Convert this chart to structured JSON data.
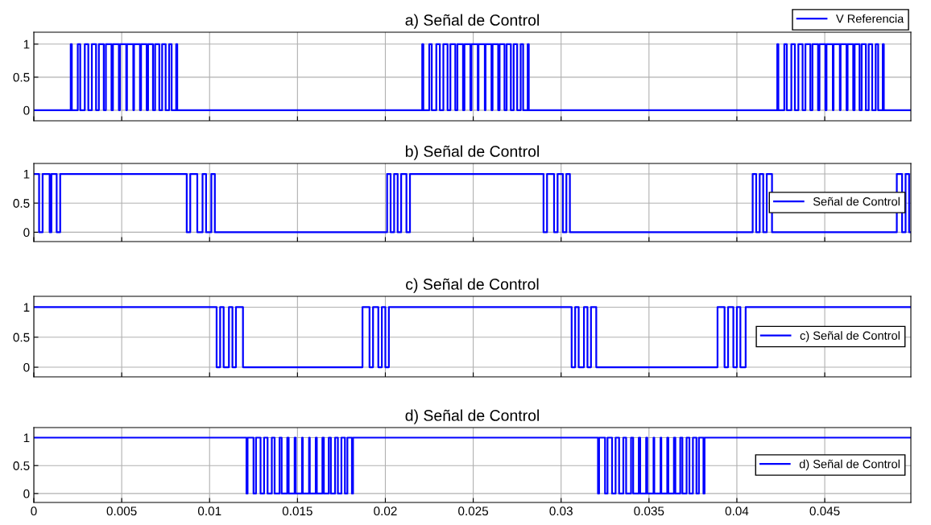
{
  "chart_data": [
    {
      "type": "step",
      "title": "a) Señal de Control",
      "xlim": [
        0,
        0.0499
      ],
      "xticks": [
        0,
        0.005,
        0.01,
        0.015,
        0.02,
        0.025,
        0.03,
        0.035,
        0.04,
        0.045
      ],
      "ylim": [
        -0.16,
        1.18
      ],
      "yticks": [
        0,
        0.5,
        1
      ],
      "grid": true,
      "legend": "top right",
      "tick_labels": "y",
      "series": [
        {
          "name": "V Referencia",
          "color": "#0000ff",
          "x": [
            0,
            0.0021,
            0.00216,
            0.0025,
            0.00264,
            0.0029,
            0.0031,
            0.0033,
            0.00354,
            0.0037,
            0.00398,
            0.0041,
            0.00442,
            0.0045,
            0.00484,
            0.0049,
            0.00526,
            0.0053,
            0.00566,
            0.0057,
            0.00604,
            0.0061,
            0.00642,
            0.0065,
            0.00678,
            0.0069,
            0.00714,
            0.0073,
            0.0075,
            0.0077,
            0.00784,
            0.0081,
            0.00816,
            0.0221,
            0.02216,
            0.0225,
            0.02264,
            0.0229,
            0.0231,
            0.0233,
            0.02354,
            0.0237,
            0.02398,
            0.0241,
            0.02442,
            0.0245,
            0.02484,
            0.0249,
            0.02526,
            0.0253,
            0.02566,
            0.0257,
            0.02604,
            0.0261,
            0.02642,
            0.0265,
            0.02678,
            0.0269,
            0.02714,
            0.0273,
            0.0275,
            0.0277,
            0.02784,
            0.0281,
            0.02816,
            0.0423,
            0.04236,
            0.0427,
            0.04284,
            0.0431,
            0.0433,
            0.0435,
            0.04374,
            0.0439,
            0.04418,
            0.0443,
            0.04462,
            0.0447,
            0.04504,
            0.0451,
            0.04546,
            0.0455,
            0.04586,
            0.0459,
            0.04624,
            0.0463,
            0.04662,
            0.0467,
            0.04698,
            0.0471,
            0.04734,
            0.0475,
            0.0477,
            0.0479,
            0.04804,
            0.0483,
            0.04836,
            0.0499
          ],
          "values": [
            0,
            1,
            0,
            1,
            0,
            1,
            0,
            1,
            0,
            1,
            0,
            1,
            0,
            1,
            0,
            1,
            0,
            1,
            0,
            1,
            0,
            1,
            0,
            1,
            0,
            1,
            0,
            1,
            0,
            1,
            0,
            1,
            0,
            1,
            0,
            1,
            0,
            1,
            0,
            1,
            0,
            1,
            0,
            1,
            0,
            1,
            0,
            1,
            0,
            1,
            0,
            1,
            0,
            1,
            0,
            1,
            0,
            1,
            0,
            1,
            0,
            1,
            0,
            1,
            0,
            1,
            0,
            1,
            0,
            1,
            0,
            1,
            0,
            1,
            0,
            1,
            0,
            1,
            0,
            1,
            0,
            1,
            0,
            1,
            0,
            1,
            0,
            1,
            0,
            1,
            0,
            1,
            0,
            1,
            0,
            1,
            0,
            0
          ]
        }
      ]
    },
    {
      "type": "step",
      "title": "b) Señal de Control",
      "xlim": [
        0,
        0.0499
      ],
      "xticks": [
        0,
        0.005,
        0.01,
        0.015,
        0.02,
        0.025,
        0.03,
        0.035,
        0.04,
        0.045
      ],
      "ylim": [
        -0.16,
        1.18
      ],
      "yticks": [
        0,
        0.5,
        1
      ],
      "grid": true,
      "legend": "right",
      "tick_labels": "y",
      "series": [
        {
          "name": "Señal de Control",
          "color": "#0000ff",
          "x": [
            0,
            0.0003,
            0.0005,
            0.0009,
            0.001,
            0.0013,
            0.0015,
            0.0087,
            0.0089,
            0.0093,
            0.0096,
            0.0098,
            0.0101,
            0.0103,
            0.0201,
            0.0203,
            0.0205,
            0.0207,
            0.0209,
            0.0212,
            0.0214,
            0.029,
            0.0292,
            0.0296,
            0.0298,
            0.0301,
            0.0303,
            0.0305,
            0.0409,
            0.0411,
            0.0413,
            0.0415,
            0.0417,
            0.042,
            0.0491,
            0.0494,
            0.0496,
            0.0498,
            0.0499
          ],
          "values": [
            1,
            0,
            1,
            0,
            1,
            0,
            1,
            0,
            1,
            0,
            1,
            0,
            1,
            0,
            1,
            0,
            1,
            0,
            1,
            0,
            1,
            0,
            1,
            0,
            1,
            0,
            1,
            0,
            1,
            0,
            1,
            0,
            1,
            0,
            1,
            0,
            1,
            0,
            0
          ]
        }
      ]
    },
    {
      "type": "step",
      "title": "c) Señal de Control",
      "xlim": [
        0,
        0.0499
      ],
      "xticks": [
        0,
        0.005,
        0.01,
        0.015,
        0.02,
        0.025,
        0.03,
        0.035,
        0.04,
        0.045
      ],
      "ylim": [
        -0.16,
        1.18
      ],
      "yticks": [
        0,
        0.5,
        1
      ],
      "grid": true,
      "legend": "right",
      "tick_labels": "y",
      "series": [
        {
          "name": "c) Señal de Control",
          "color": "#0000ff",
          "x": [
            0,
            0.0104,
            0.0106,
            0.0108,
            0.0111,
            0.0113,
            0.0115,
            0.0119,
            0.0187,
            0.0191,
            0.0193,
            0.0196,
            0.0198,
            0.02,
            0.0202,
            0.0306,
            0.0308,
            0.031,
            0.0313,
            0.0315,
            0.0317,
            0.032,
            0.0389,
            0.0393,
            0.0395,
            0.0398,
            0.04,
            0.0402,
            0.0405,
            0.0499
          ],
          "values": [
            1,
            0,
            1,
            0,
            1,
            0,
            1,
            0,
            1,
            0,
            1,
            0,
            1,
            0,
            1,
            0,
            1,
            0,
            1,
            0,
            1,
            0,
            1,
            0,
            1,
            0,
            1,
            0,
            1,
            1
          ]
        }
      ]
    },
    {
      "type": "step",
      "title": "d) Señal de Control",
      "xlim": [
        0,
        0.0499
      ],
      "xticks": [
        0,
        0.005,
        0.01,
        0.015,
        0.02,
        0.025,
        0.03,
        0.035,
        0.04,
        0.045
      ],
      "ylim": [
        -0.16,
        1.18
      ],
      "yticks": [
        0,
        0.5,
        1
      ],
      "grid": true,
      "legend": "right",
      "series": [
        {
          "name": "d) Señal de Control",
          "color": "#0000ff",
          "x": [
            0,
            0.0121,
            0.01216,
            0.0125,
            0.01264,
            0.0129,
            0.0131,
            0.0133,
            0.01354,
            0.0137,
            0.01398,
            0.0141,
            0.01442,
            0.0145,
            0.01484,
            0.0149,
            0.01526,
            0.0153,
            0.01566,
            0.0157,
            0.01604,
            0.0161,
            0.01642,
            0.0165,
            0.01678,
            0.0169,
            0.01714,
            0.0173,
            0.0175,
            0.0177,
            0.01784,
            0.0181,
            0.01816,
            0.0321,
            0.03216,
            0.0325,
            0.03264,
            0.0329,
            0.0331,
            0.0333,
            0.03354,
            0.0337,
            0.03398,
            0.0341,
            0.03442,
            0.0345,
            0.03484,
            0.0349,
            0.03526,
            0.0353,
            0.03566,
            0.0357,
            0.03604,
            0.0361,
            0.03642,
            0.0365,
            0.03678,
            0.0369,
            0.03714,
            0.0373,
            0.0375,
            0.0377,
            0.03784,
            0.0381,
            0.03816,
            0.0499
          ],
          "values": [
            1,
            0,
            1,
            0,
            1,
            0,
            1,
            0,
            1,
            0,
            1,
            0,
            1,
            0,
            1,
            0,
            1,
            0,
            1,
            0,
            1,
            0,
            1,
            0,
            1,
            0,
            1,
            0,
            1,
            0,
            1,
            0,
            1,
            0,
            1,
            0,
            1,
            0,
            1,
            0,
            1,
            0,
            1,
            0,
            1,
            0,
            1,
            0,
            1,
            0,
            1,
            0,
            1,
            0,
            1,
            0,
            1,
            0,
            1,
            0,
            1,
            0,
            1,
            0,
            1,
            1
          ]
        }
      ]
    }
  ]
}
